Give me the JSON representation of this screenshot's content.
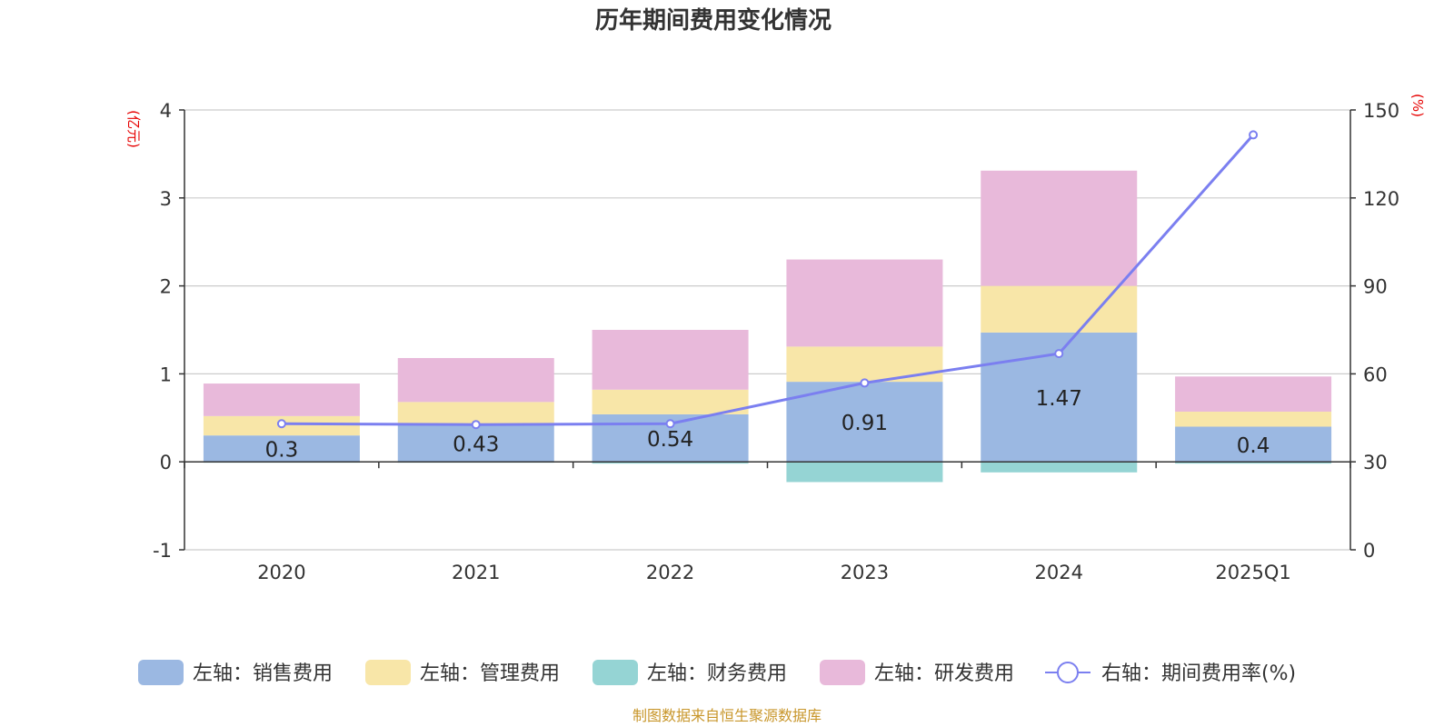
{
  "chart_data": {
    "type": "bar",
    "title": "历年期间费用变化情况",
    "categories": [
      "2020",
      "2021",
      "2022",
      "2023",
      "2024",
      "2025Q1"
    ],
    "y_left": {
      "unit": "(亿元)",
      "lim": [
        -1,
        4
      ],
      "ticks": [
        -1,
        0,
        1,
        2,
        3,
        4
      ]
    },
    "y_right": {
      "unit": "(%)",
      "lim": [
        0,
        150
      ],
      "ticks": [
        0,
        30,
        60,
        90,
        120,
        150
      ]
    },
    "series": [
      {
        "name": "左轴：销售费用",
        "kind": "bar",
        "color": "#9bb8e2",
        "values": [
          0.3,
          0.43,
          0.54,
          0.91,
          1.47,
          0.4
        ]
      },
      {
        "name": "左轴：管理费用",
        "kind": "bar",
        "color": "#f8e6a8",
        "values": [
          0.22,
          0.25,
          0.28,
          0.4,
          0.53,
          0.17
        ]
      },
      {
        "name": "左轴：财务费用",
        "kind": "bar",
        "color": "#95d4d4",
        "values": [
          -0.01,
          -0.01,
          -0.02,
          -0.23,
          -0.12,
          -0.02
        ]
      },
      {
        "name": "左轴：研发费用",
        "kind": "bar",
        "color": "#e8b9da",
        "values": [
          0.37,
          0.5,
          0.68,
          0.99,
          1.31,
          0.4
        ]
      },
      {
        "name": "右轴：期间费用率(%)",
        "kind": "line",
        "color": "#7b7ff0",
        "values": [
          43.0,
          42.7,
          43.0,
          56.9,
          66.9,
          141.5
        ]
      }
    ],
    "data_labels": [
      "0.3",
      "0.43",
      "0.54",
      "0.91",
      "1.47",
      "0.4"
    ],
    "legend_position": "bottom",
    "grid": true
  },
  "source": "制图数据来自恒生聚源数据库"
}
